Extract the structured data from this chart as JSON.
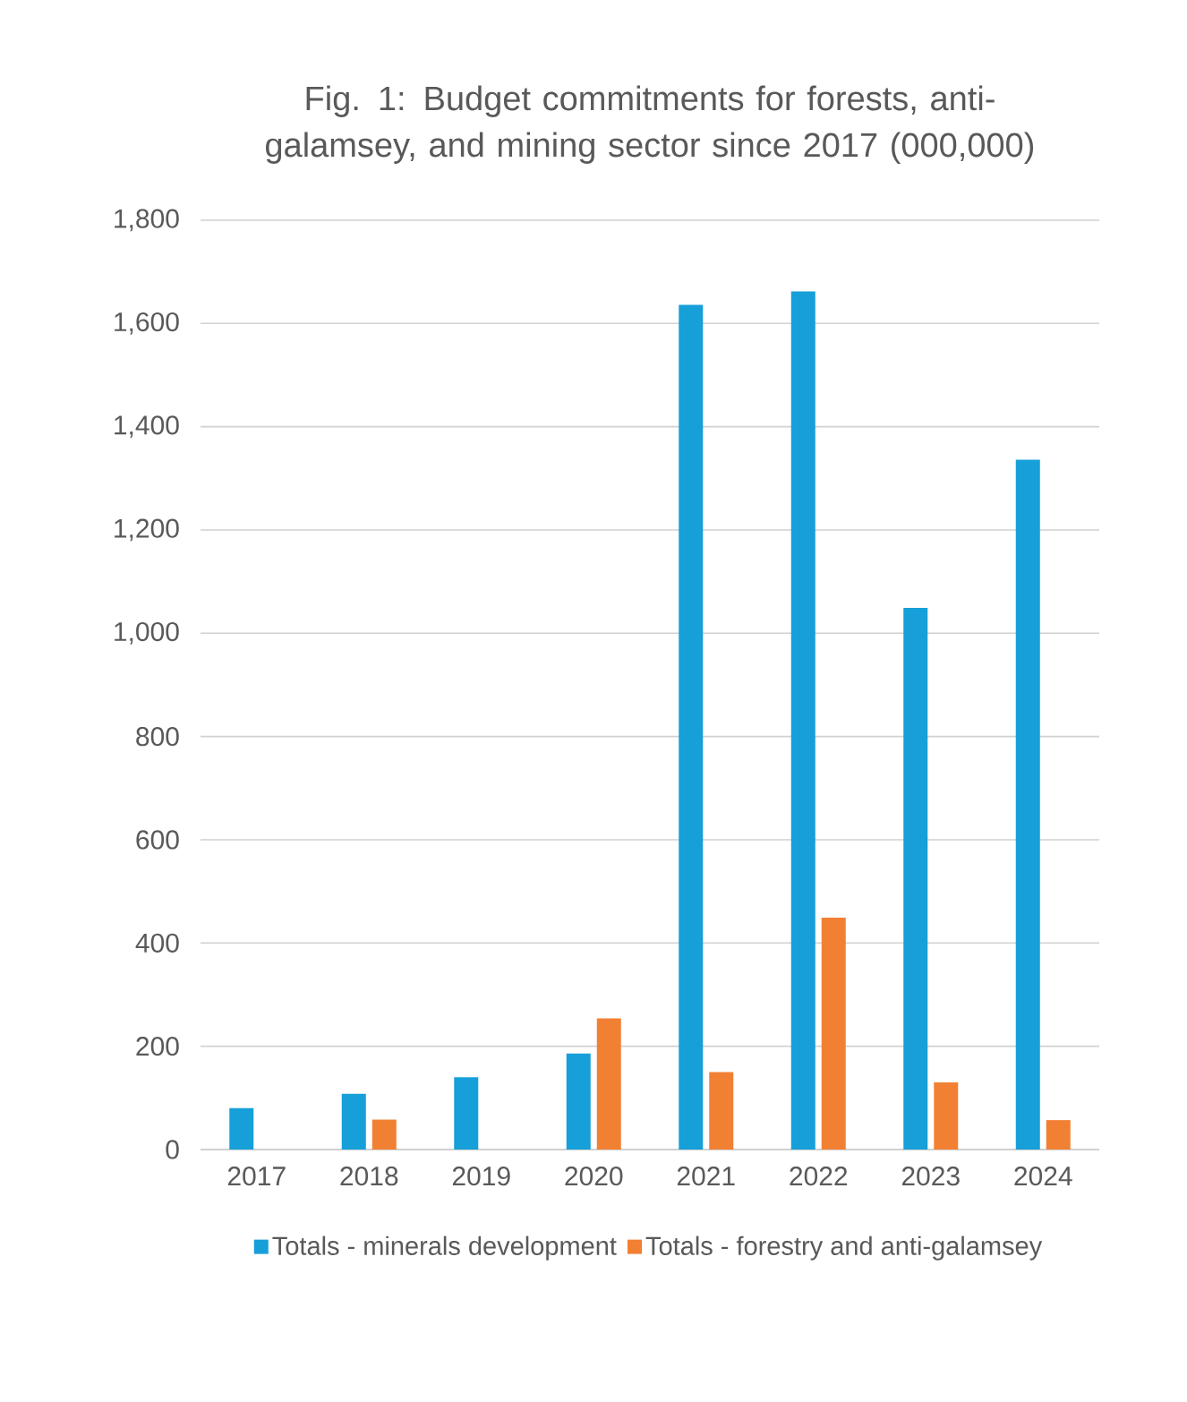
{
  "chart_data": {
    "type": "bar",
    "title": "Fig. 1: Budget commitments for forests, anti-galamsey, and mining sector since 2017 (000,000)",
    "categories": [
      "2017",
      "2018",
      "2019",
      "2020",
      "2021",
      "2022",
      "2023",
      "2024"
    ],
    "series": [
      {
        "name": "Totals - minerals development",
        "color": "#169fd8",
        "values": [
          80,
          108,
          140,
          186,
          1636,
          1662,
          1049,
          1336
        ]
      },
      {
        "name": "Totals - forestry and anti-galamsey",
        "color": "#f28033",
        "values": [
          null,
          58,
          null,
          254,
          150,
          449,
          130,
          57
        ]
      }
    ],
    "ylim": [
      0,
      1800
    ],
    "yticks": [
      0,
      200,
      400,
      600,
      800,
      {
        "value": 1000,
        "label": "1,000"
      },
      {
        "value": 1200,
        "label": "1,200"
      },
      {
        "value": 1400,
        "label": "1,400"
      },
      {
        "value": 1600,
        "label": "1,600"
      },
      {
        "value": 1800,
        "label": "1,800"
      }
    ],
    "grid": "y",
    "legend": "bottom"
  }
}
